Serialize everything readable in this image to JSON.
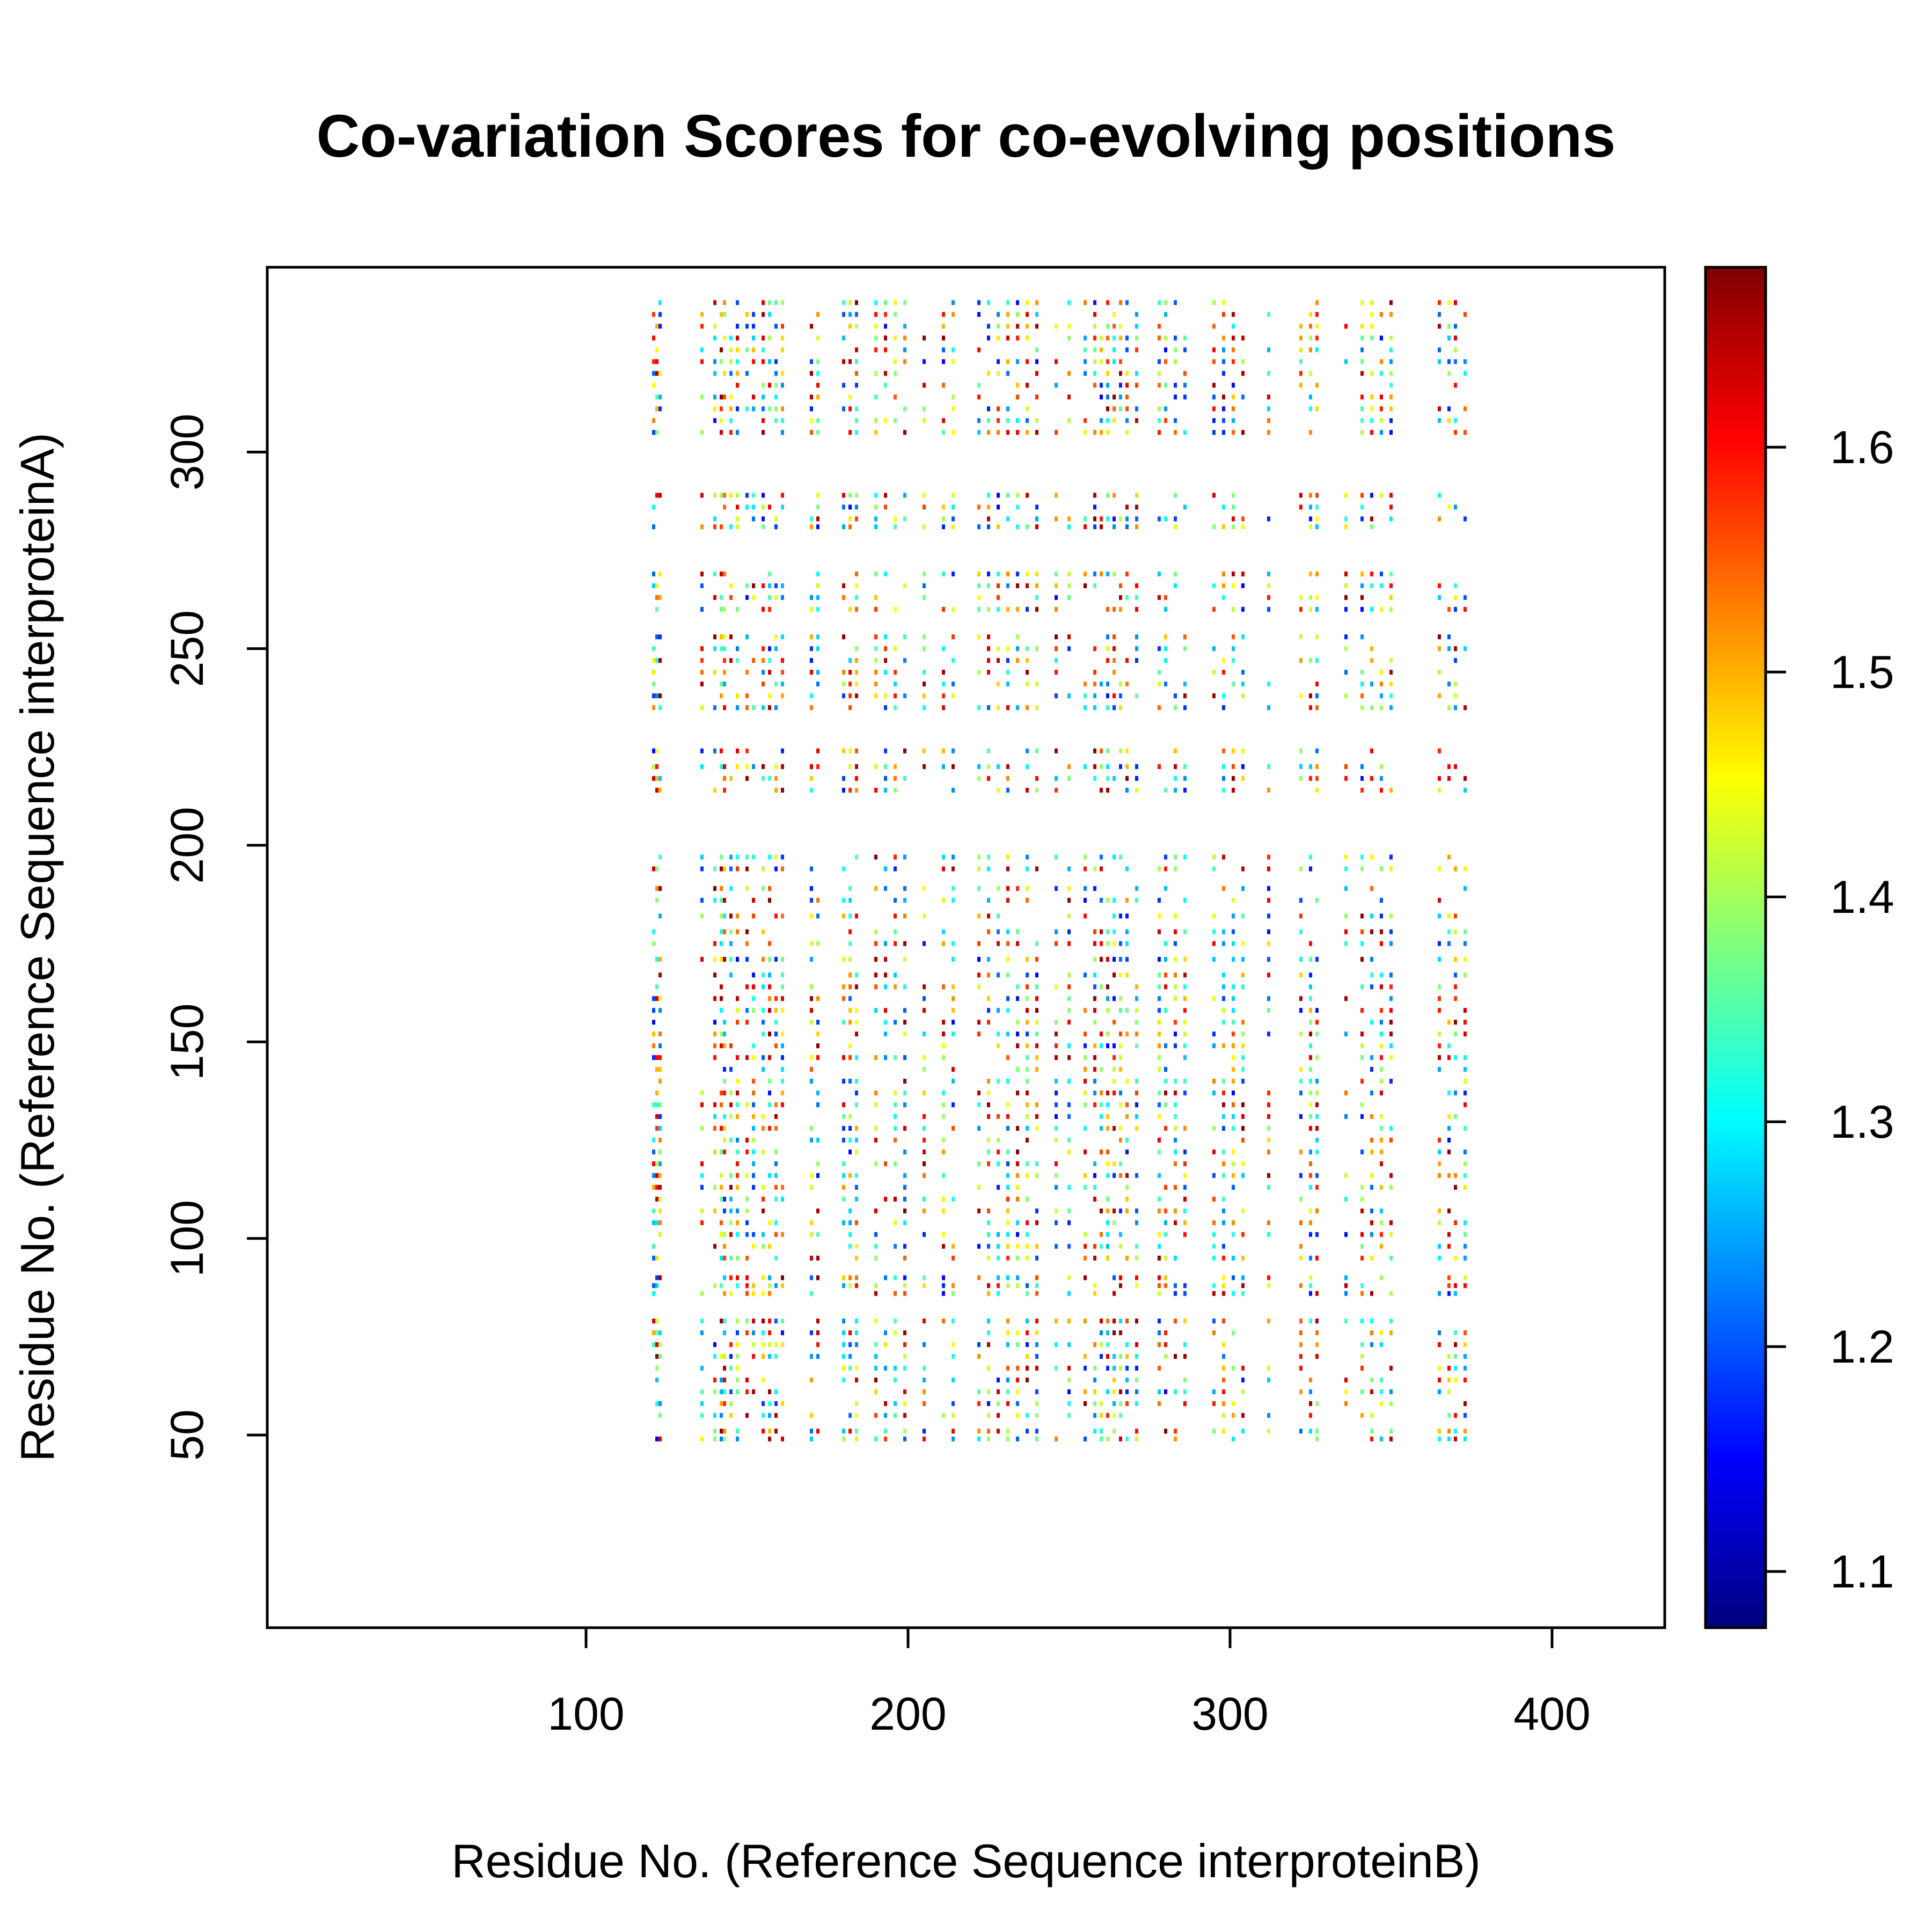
{
  "chart_data": {
    "type": "heatmap",
    "title": "Co-variation Scores for co-evolving positions",
    "xlabel": "Residue No. (Reference Sequence interproteinB)",
    "ylabel": "Residue No. (Reference Sequence interproteinA)",
    "xlim": [
      1,
      435
    ],
    "ylim": [
      1,
      347
    ],
    "x_ticks": [
      100,
      200,
      300,
      400
    ],
    "y_ticks": [
      50,
      100,
      150,
      200,
      250,
      300
    ],
    "colorbar": {
      "range": [
        1.075,
        1.68
      ],
      "ticks": [
        1.1,
        1.2,
        1.3,
        1.4,
        1.5,
        1.6
      ],
      "colors": [
        "#00007F",
        "#0000FF",
        "#007FFF",
        "#00FFFF",
        "#7FFF7F",
        "#FFFF00",
        "#FF7F00",
        "#FF0000",
        "#7F0000"
      ]
    },
    "x_positions": [
      121,
      122,
      123,
      136,
      140,
      142,
      143,
      145,
      147,
      150,
      152,
      155,
      157,
      159,
      161,
      170,
      172,
      180,
      182,
      184,
      190,
      193,
      196,
      199,
      205,
      211,
      214,
      222,
      225,
      228,
      231,
      234,
      237,
      240,
      246,
      250,
      255,
      258,
      260,
      262,
      264,
      266,
      268,
      271,
      278,
      280,
      283,
      286,
      295,
      298,
      301,
      304,
      312,
      322,
      325,
      327,
      336,
      341,
      344,
      347,
      350,
      365,
      368,
      370,
      373
    ],
    "y_positions": [
      49,
      51,
      55,
      58,
      61,
      64,
      67,
      70,
      73,
      76,
      79,
      86,
      88,
      90,
      95,
      98,
      101,
      104,
      107,
      110,
      113,
      116,
      119,
      122,
      125,
      128,
      131,
      134,
      137,
      140,
      143,
      146,
      149,
      152,
      155,
      158,
      161,
      164,
      167,
      171,
      175,
      178,
      182,
      186,
      189,
      194,
      197,
      214,
      217,
      220,
      224,
      235,
      238,
      241,
      244,
      247,
      250,
      253,
      260,
      263,
      266,
      269,
      281,
      283,
      286,
      289,
      305,
      308,
      311,
      314,
      317,
      320,
      323,
      326,
      329,
      332,
      335,
      338
    ],
    "seed": 20240611
  }
}
